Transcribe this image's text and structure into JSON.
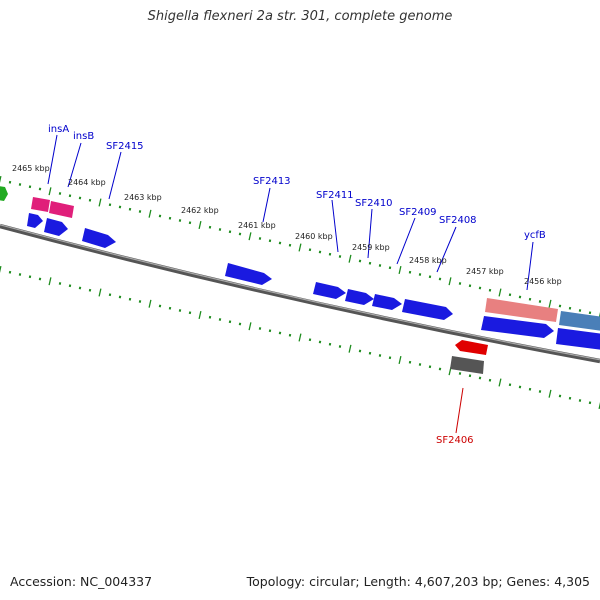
{
  "title": "Shigella flexneri 2a str. 301, complete genome",
  "footer": {
    "accession": "Accession: NC_004337",
    "stats": "Topology: circular; Length: 4,607,203 bp; Genes: 4,305"
  },
  "colors": {
    "backbone": "#777777",
    "tick": "#1e8c1e",
    "gene_blue": "#1a1ae0",
    "gene_pink": "#e01f7a",
    "gene_salmon": "#e88080",
    "gene_steel": "#4a7fb8",
    "gene_red": "#e00000",
    "gene_gray": "#555555",
    "gene_green": "#22aa22",
    "label_forward": "#0000cc",
    "label_reverse": "#cc0000"
  },
  "scale_labels": [
    "2465 kbp",
    "2464 kbp",
    "2463 kbp",
    "2462 kbp",
    "2461 kbp",
    "2460 kbp",
    "2459 kbp",
    "2458 kbp",
    "2457 kbp",
    "2456 kbp"
  ],
  "gene_labels": [
    "insA",
    "insB",
    "SF2415",
    "SF2413",
    "SF2411",
    "SF2410",
    "SF2409",
    "SF2408",
    "ycfB",
    "SF2406"
  ]
}
